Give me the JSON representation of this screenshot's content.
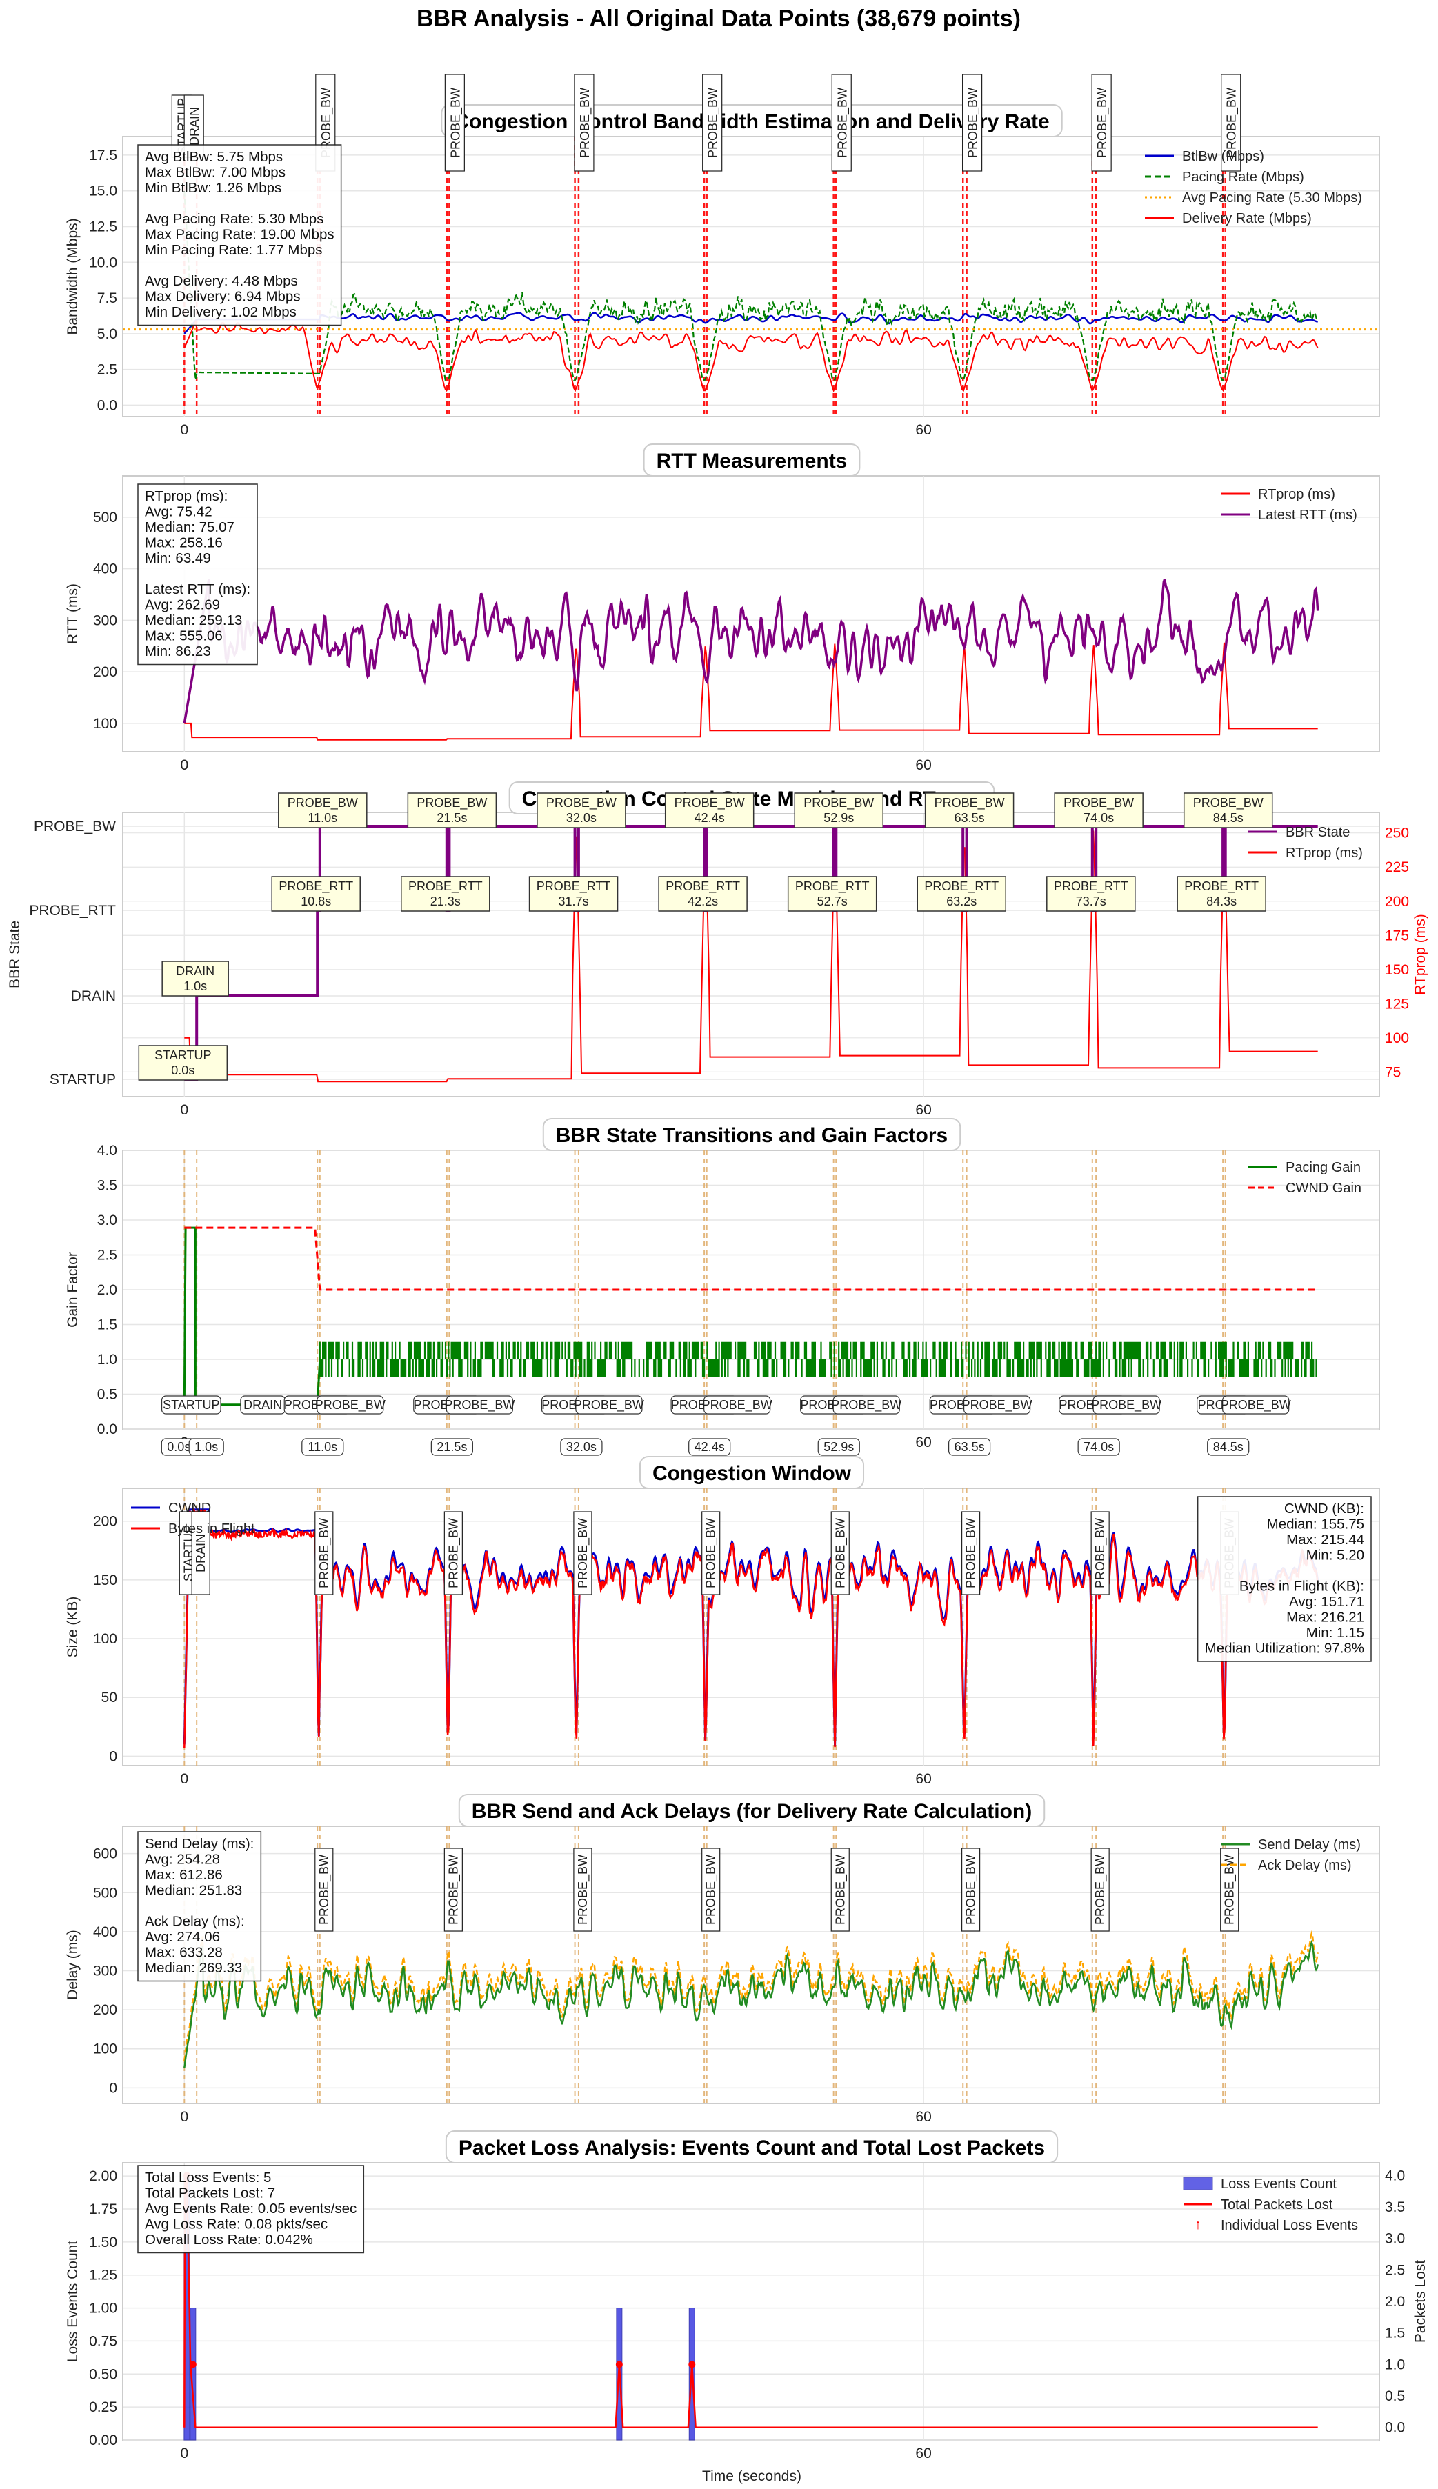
{
  "figure_title": "BBR Analysis - All Original Data Points (38,679 points)",
  "x_label": "Time (seconds)",
  "x_ticks": [
    0,
    60
  ],
  "colors": {
    "btlbw": "#0000cc",
    "pacing": "#008000",
    "avg_pacing": "#ffa500",
    "delivery": "#ff0000",
    "rtprop": "#ff0000",
    "latest_rtt": "#800080",
    "state": "#800080",
    "send_delay": "#228b22",
    "ack_delay": "#ffa500",
    "loss_bar": "#3b3bdf",
    "marker_red": "#ff0000",
    "marker_gold": "#e0b070",
    "annot_fill": "#ffffe0",
    "grid": "#e6e6e6"
  },
  "transitions": [
    {
      "state": "STARTUP",
      "t": 0.0,
      "label": "0.0s"
    },
    {
      "state": "DRAIN",
      "t": 1.0,
      "label": "1.0s"
    },
    {
      "state": "PROBE_RTT",
      "t": 10.8,
      "label": "10.8s"
    },
    {
      "state": "PROBE_BW",
      "t": 11.0,
      "label": "11.0s"
    },
    {
      "state": "PROBE_RTT",
      "t": 21.3,
      "label": "21.3s"
    },
    {
      "state": "PROBE_BW",
      "t": 21.5,
      "label": "21.5s"
    },
    {
      "state": "PROBE_RTT",
      "t": 31.7,
      "label": "31.7s"
    },
    {
      "state": "PROBE_BW",
      "t": 32.0,
      "label": "32.0s"
    },
    {
      "state": "PROBE_RTT",
      "t": 42.2,
      "label": "42.2s"
    },
    {
      "state": "PROBE_BW",
      "t": 42.4,
      "label": "42.4s"
    },
    {
      "state": "PROBE_RTT",
      "t": 52.7,
      "label": "52.7s"
    },
    {
      "state": "PROBE_BW",
      "t": 52.9,
      "label": "52.9s"
    },
    {
      "state": "PROBE_RTT",
      "t": 63.2,
      "label": "63.2s"
    },
    {
      "state": "PROBE_BW",
      "t": 63.5,
      "label": "63.5s"
    },
    {
      "state": "PROBE_RTT",
      "t": 73.7,
      "label": "73.7s"
    },
    {
      "state": "PROBE_BW",
      "t": 74.0,
      "label": "74.0s"
    },
    {
      "state": "PROBE_RTT",
      "t": 84.3,
      "label": "84.3s"
    },
    {
      "state": "PROBE_BW",
      "t": 84.5,
      "label": "84.5s"
    }
  ],
  "chart_data": [
    {
      "type": "line",
      "title": "Congestion Control Bandwidth Estimation and Delivery Rate",
      "xlabel": "",
      "ylabel": "Bandwidth (Mbps)",
      "xlim": [
        -5,
        97
      ],
      "ylim": [
        -0.8,
        18.8
      ],
      "yticks": [
        0.0,
        2.5,
        5.0,
        7.5,
        10.0,
        12.5,
        15.0,
        17.5
      ],
      "legend": "top-right",
      "series": [
        {
          "name": "BtlBw (Mbps)",
          "style": "solid",
          "color": "#0000cc"
        },
        {
          "name": "Pacing Rate (Mbps)",
          "style": "dashed",
          "color": "#008000"
        },
        {
          "name": "Avg Pacing Rate (5.30 Mbps)",
          "style": "dotted",
          "color": "#ffa500",
          "value": 5.3
        },
        {
          "name": "Delivery Rate (Mbps)",
          "style": "solid",
          "color": "#ff0000"
        }
      ],
      "stats": [
        "Avg BtlBw: 5.75 Mbps",
        "Max BtlBw: 7.00 Mbps",
        "Min BtlBw: 1.26 Mbps",
        "",
        "Avg Pacing Rate: 5.30 Mbps",
        "Max Pacing Rate: 19.00 Mbps",
        "Min Pacing Rate: 1.77 Mbps",
        "",
        "Avg Delivery: 4.48 Mbps",
        "Max Delivery: 6.94 Mbps",
        "Min Delivery: 1.02 Mbps"
      ],
      "markers": "red"
    },
    {
      "type": "line",
      "title": "RTT Measurements",
      "xlabel": "",
      "ylabel": "RTT (ms)",
      "xlim": [
        -5,
        97
      ],
      "ylim": [
        45,
        580
      ],
      "yticks": [
        100,
        200,
        300,
        400,
        500
      ],
      "legend": "top-right",
      "series": [
        {
          "name": "RTprop (ms)",
          "style": "solid",
          "color": "#ff0000"
        },
        {
          "name": "Latest RTT (ms)",
          "style": "solid",
          "color": "#800080"
        }
      ],
      "stats": [
        "RTprop (ms):",
        "  Avg: 75.42",
        "  Median: 75.07",
        "  Max: 258.16",
        "  Min: 63.49",
        "",
        "Latest RTT (ms):",
        "  Avg: 262.69",
        "  Median: 259.13",
        "  Max: 555.06",
        "  Min: 86.23"
      ],
      "markers": "none"
    },
    {
      "type": "line",
      "title": "Congestion Control State Machine and RTprop",
      "xlabel": "",
      "ylabel": "BBR State",
      "y2label": "RTprop (ms)",
      "xlim": [
        -5,
        97
      ],
      "states": [
        "STARTUP",
        "DRAIN",
        "PROBE_RTT",
        "PROBE_BW"
      ],
      "y2lim": [
        57,
        265
      ],
      "y2ticks": [
        75,
        100,
        125,
        150,
        175,
        200,
        225,
        250
      ],
      "legend": "right",
      "series": [
        {
          "name": "BBR State",
          "style": "solid",
          "color": "#800080"
        },
        {
          "name": "RTprop (ms)",
          "style": "solid",
          "color": "#ff0000"
        }
      ],
      "markers": "none"
    },
    {
      "type": "line",
      "title": "BBR State Transitions and Gain Factors",
      "xlabel": "",
      "ylabel": "Gain Factor",
      "xlim": [
        -5,
        97
      ],
      "ylim": [
        0,
        4.0
      ],
      "yticks": [
        0.0,
        0.5,
        1.0,
        1.5,
        2.0,
        2.5,
        3.0,
        3.5,
        4.0
      ],
      "legend": "top-right",
      "series": [
        {
          "name": "Pacing Gain",
          "style": "solid",
          "color": "#008000"
        },
        {
          "name": "CWND Gain",
          "style": "dashed",
          "color": "#ff0000"
        }
      ],
      "state_labels": [
        "STARTUP",
        "DRAIN",
        "PROBE_RT",
        "PROBE_BW",
        "PROBE_RT",
        "PROBE_BW",
        "PROBE_RT",
        "PROBE_BW",
        "PROBE_RT",
        "PROBE_BW",
        "PROBE_RT",
        "PROBE_BW",
        "PROBE_RT",
        "PROBE_BW",
        "PROBE_RT",
        "PROBE_BW",
        "PROBE_",
        "PROBE_BW"
      ],
      "markers": "gold"
    },
    {
      "type": "line",
      "title": "Congestion Window",
      "xlabel": "",
      "ylabel": "Size (KB)",
      "xlim": [
        -5,
        97
      ],
      "ylim": [
        -8,
        228
      ],
      "yticks": [
        0,
        50,
        100,
        150,
        200
      ],
      "legend": "top-left",
      "series": [
        {
          "name": "CWND",
          "style": "solid",
          "color": "#0000cc"
        },
        {
          "name": "Bytes in Flight",
          "style": "solid",
          "color": "#ff0000"
        }
      ],
      "stats": [
        "CWND (KB):",
        "Median: 155.75",
        "Max: 215.44",
        "Min: 5.20",
        "",
        "Bytes in Flight (KB):",
        "Avg: 151.71",
        "Max: 216.21",
        "Min: 1.15",
        "Median Utilization: 97.8%"
      ],
      "markers": "gold"
    },
    {
      "type": "line",
      "title": "BBR Send and Ack Delays (for Delivery Rate Calculation)",
      "xlabel": "",
      "ylabel": "Delay (ms)",
      "xlim": [
        -5,
        97
      ],
      "ylim": [
        -40,
        670
      ],
      "yticks": [
        0,
        100,
        200,
        300,
        400,
        500,
        600
      ],
      "legend": "top-right",
      "series": [
        {
          "name": "Send Delay (ms)",
          "style": "solid",
          "color": "#228b22"
        },
        {
          "name": "Ack Delay (ms)",
          "style": "dashed",
          "color": "#ffa500"
        }
      ],
      "stats": [
        "Send Delay (ms):",
        "  Avg: 254.28",
        "  Max: 612.86",
        "  Median: 251.83",
        "",
        "Ack Delay (ms):",
        "  Avg: 274.06",
        "  Max: 633.28",
        "  Median: 269.33"
      ],
      "markers": "gold"
    },
    {
      "type": "bar",
      "title": "Packet Loss Analysis: Events Count and Total Lost Packets",
      "xlabel": "Time (seconds)",
      "ylabel": "Loss Events Count",
      "y2label": "Packets Lost",
      "xlim": [
        -5,
        97
      ],
      "ylim": [
        0,
        2.1
      ],
      "yticks": [
        0.0,
        0.25,
        0.5,
        0.75,
        1.0,
        1.25,
        1.5,
        1.75,
        2.0
      ],
      "y2lim": [
        -0.2,
        4.2
      ],
      "y2ticks": [
        0.0,
        0.5,
        1.0,
        1.5,
        2.0,
        2.5,
        3.0,
        3.5,
        4.0
      ],
      "legend": "top-right",
      "series": [
        {
          "name": "Loss Events Count",
          "color": "#3b3bdf"
        },
        {
          "name": "Total Packets Lost",
          "color": "#ff0000"
        },
        {
          "name": "Individual Loss Events",
          "color": "#ff0000"
        }
      ],
      "bars": [
        {
          "x": 0.2,
          "y": 2
        },
        {
          "x": 0.7,
          "y": 1
        },
        {
          "x": 35.3,
          "y": 1
        },
        {
          "x": 41.2,
          "y": 1
        }
      ],
      "packets": [
        {
          "x": 0.2,
          "y": 4
        },
        {
          "x": 0.7,
          "y": 1
        },
        {
          "x": 35.3,
          "y": 1
        },
        {
          "x": 41.2,
          "y": 1
        }
      ],
      "stats": [
        "Total Loss Events: 5",
        "Total Packets Lost: 7",
        "Avg Events Rate: 0.05 events/sec",
        "Avg Loss Rate: 0.08 pkts/sec",
        "Overall Loss Rate: 0.042%"
      ],
      "markers": "none"
    }
  ]
}
